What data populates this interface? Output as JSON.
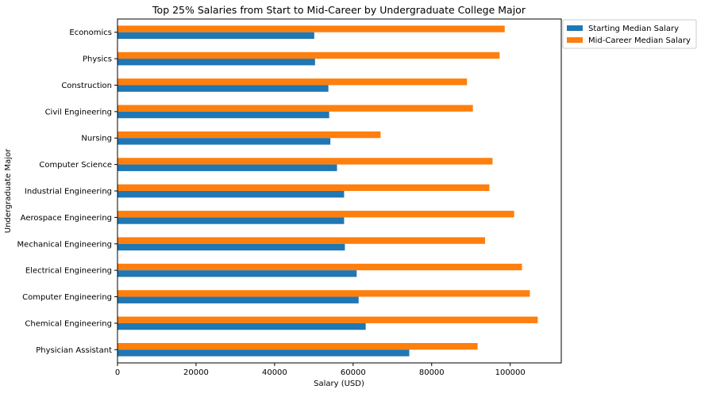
{
  "chart_data": {
    "type": "bar",
    "orientation": "horizontal",
    "title": "Top 25% Salaries from Start to Mid-Career by Undergraduate College Major",
    "xlabel": "Salary (USD)",
    "ylabel": "Undergraduate Major",
    "xlim": [
      0,
      113000
    ],
    "xticks": [
      0,
      20000,
      40000,
      60000,
      80000,
      100000
    ],
    "xtick_labels": [
      "0",
      "20000",
      "40000",
      "60000",
      "80000",
      "100000"
    ],
    "grid": false,
    "legend_position": "outside-top-right",
    "categories": [
      "Economics",
      "Physics",
      "Construction",
      "Civil Engineering",
      "Nursing",
      "Computer Science",
      "Industrial Engineering",
      "Aerospace Engineering",
      "Mechanical Engineering",
      "Electrical Engineering",
      "Computer Engineering",
      "Chemical Engineering",
      "Physician Assistant"
    ],
    "series": [
      {
        "name": "Starting Median Salary",
        "color": "#1f77b4",
        "values": [
          50100,
          50300,
          53700,
          53900,
          54200,
          55900,
          57700,
          57700,
          57900,
          60900,
          61400,
          63200,
          74300
        ]
      },
      {
        "name": "Mid-Career Median Salary",
        "color": "#ff7f0e",
        "values": [
          98600,
          97300,
          89000,
          90500,
          67000,
          95500,
          94700,
          101000,
          93600,
          103000,
          105000,
          107000,
          91700
        ]
      }
    ]
  }
}
